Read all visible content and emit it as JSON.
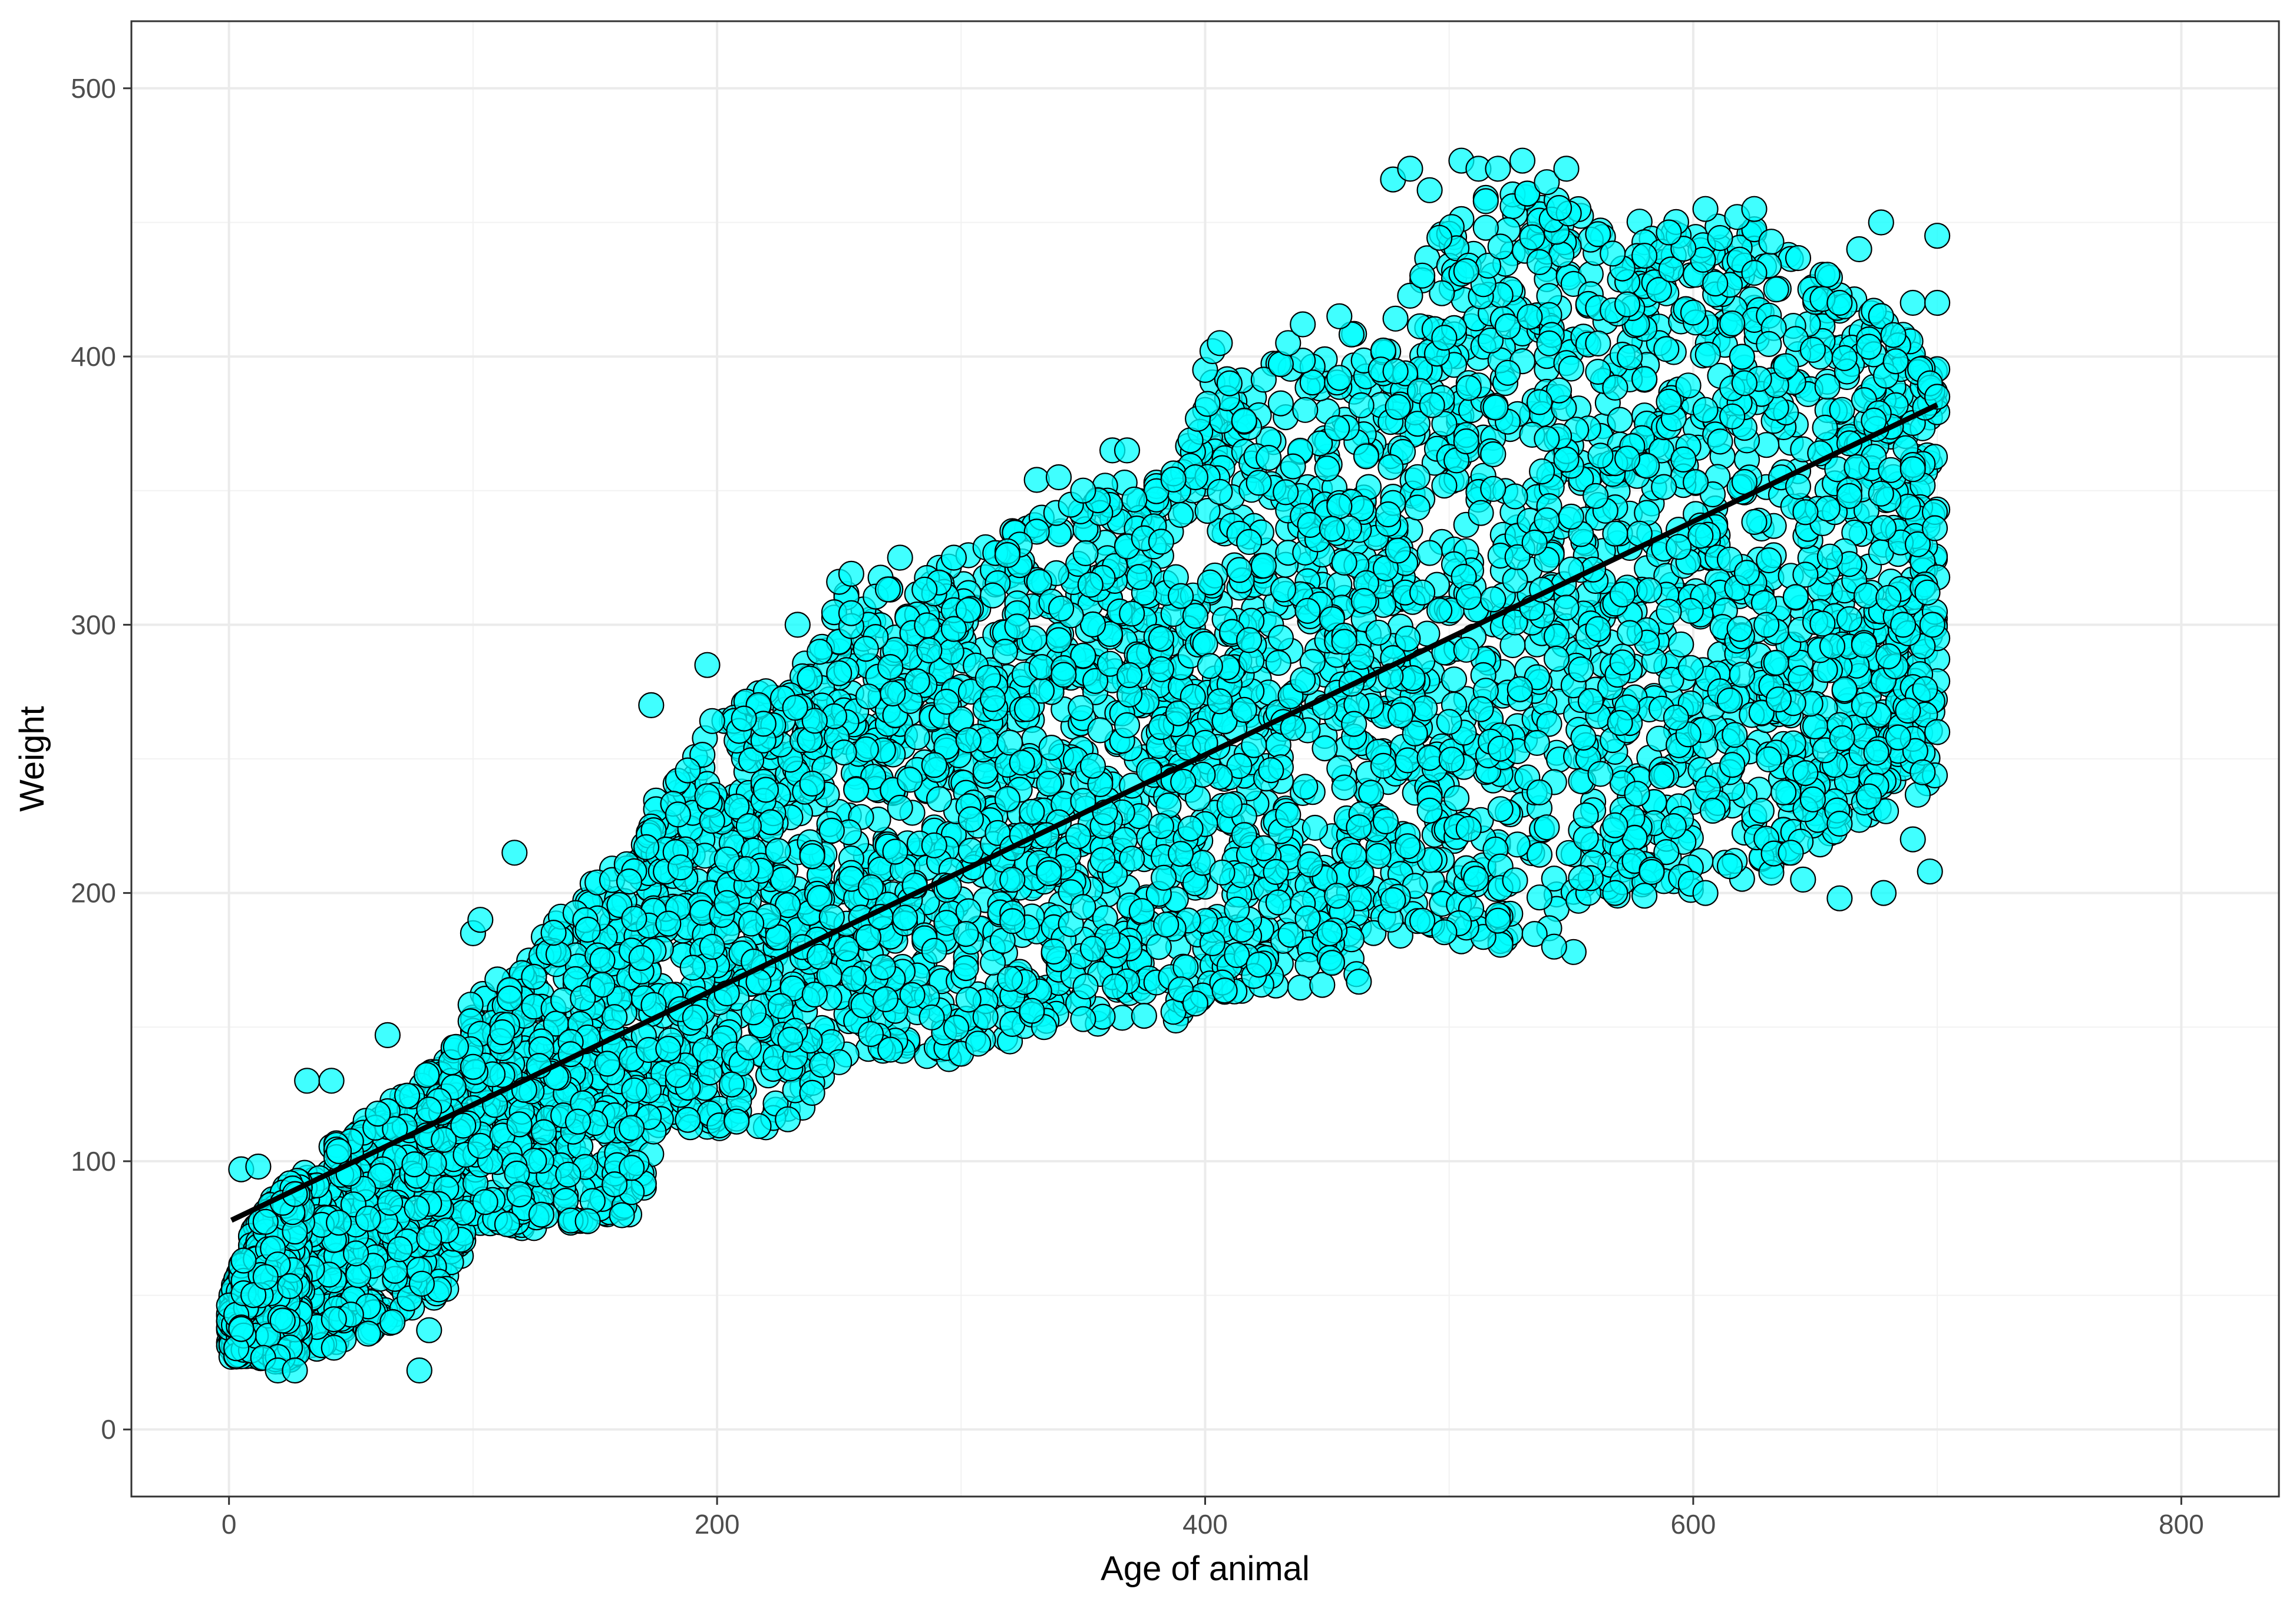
{
  "chart_data": {
    "type": "scatter",
    "title": "",
    "xlabel": "Age of animal",
    "ylabel": "Weight",
    "xlim": [
      -40,
      840
    ],
    "ylim": [
      -25,
      525
    ],
    "x_ticks": [
      0,
      200,
      400,
      600,
      800
    ],
    "y_ticks": [
      0,
      100,
      200,
      300,
      400,
      500
    ],
    "x_tick_labels": [
      "0",
      "200",
      "400",
      "600",
      "800"
    ],
    "y_tick_labels": [
      "0",
      "100",
      "200",
      "300",
      "400",
      "500"
    ],
    "grid": true,
    "legend": "none",
    "point_color": "#00ffff",
    "point_edge_color": "#000000",
    "trend_line": {
      "type": "linear fit",
      "color": "#000000",
      "points": [
        [
          1,
          78
        ],
        [
          700,
          382
        ]
      ]
    },
    "series": [
      {
        "envelope": [
          [
            0,
            27,
            48
          ],
          [
            10,
            27,
            75
          ],
          [
            20,
            25,
            88
          ],
          [
            30,
            27,
            96
          ],
          [
            50,
            32,
            112
          ],
          [
            70,
            40,
            126
          ],
          [
            90,
            50,
            140
          ],
          [
            100,
            75,
            160
          ],
          [
            125,
            75,
            180
          ],
          [
            150,
            78,
            205
          ],
          [
            170,
            80,
            222
          ],
          [
            175,
            112,
            235
          ],
          [
            200,
            112,
            268
          ],
          [
            230,
            112,
            280
          ],
          [
            245,
            130,
            305
          ],
          [
            260,
            138,
            318
          ],
          [
            300,
            138,
            325
          ],
          [
            330,
            148,
            340
          ],
          [
            360,
            148,
            355
          ],
          [
            390,
            152,
            360
          ],
          [
            400,
            162,
            390
          ],
          [
            430,
            162,
            398
          ],
          [
            460,
            162,
            410
          ],
          [
            480,
            180,
            420
          ],
          [
            500,
            180,
            455
          ],
          [
            530,
            180,
            465
          ],
          [
            560,
            198,
            452
          ],
          [
            600,
            200,
            452
          ],
          [
            630,
            205,
            450
          ],
          [
            650,
            215,
            435
          ],
          [
            670,
            225,
            420
          ],
          [
            700,
            240,
            400
          ]
        ],
        "outliers": [
          [
            5,
            97
          ],
          [
            12,
            98
          ],
          [
            20,
            22
          ],
          [
            27,
            22
          ],
          [
            32,
            130
          ],
          [
            42,
            130
          ],
          [
            65,
            147
          ],
          [
            78,
            22
          ],
          [
            82,
            37
          ],
          [
            100,
            185
          ],
          [
            103,
            190
          ],
          [
            117,
            215
          ],
          [
            173,
            270
          ],
          [
            196,
            285
          ],
          [
            233,
            300
          ],
          [
            250,
            316
          ],
          [
            255,
            319
          ],
          [
            275,
            325
          ],
          [
            297,
            325
          ],
          [
            319,
            326
          ],
          [
            331,
            354
          ],
          [
            340,
            355
          ],
          [
            350,
            350
          ],
          [
            362,
            365
          ],
          [
            368,
            365
          ],
          [
            400,
            395
          ],
          [
            403,
            402
          ],
          [
            406,
            405
          ],
          [
            410,
            390
          ],
          [
            434,
            405
          ],
          [
            440,
            412
          ],
          [
            455,
            415
          ],
          [
            477,
            466
          ],
          [
            484,
            470
          ],
          [
            492,
            462
          ],
          [
            505,
            473
          ],
          [
            512,
            470
          ],
          [
            520,
            470
          ],
          [
            530,
            473
          ],
          [
            540,
            465
          ],
          [
            548,
            470
          ],
          [
            551,
            178
          ],
          [
            543,
            180
          ],
          [
            605,
            455
          ],
          [
            618,
            452
          ],
          [
            625,
            455
          ],
          [
            660,
            420
          ],
          [
            668,
            440
          ],
          [
            677,
            450
          ],
          [
            682,
            408
          ],
          [
            690,
            420
          ],
          [
            697,
            390
          ],
          [
            700,
            445
          ],
          [
            700,
            420
          ],
          [
            700,
            385
          ],
          [
            700,
            260
          ],
          [
            697,
            208
          ],
          [
            690,
            220
          ],
          [
            678,
            200
          ],
          [
            675,
            240
          ],
          [
            660,
            198
          ],
          [
            645,
            205
          ],
          [
            640,
            215
          ],
          [
            615,
            210
          ],
          [
            605,
            200
          ],
          [
            580,
            199
          ],
          [
            568,
            200
          ],
          [
            688,
            268
          ],
          [
            694,
            245
          ],
          [
            698,
            300
          ],
          [
            692,
            330
          ],
          [
            686,
            300
          ],
          [
            684,
            258
          ],
          [
            670,
            270
          ],
          [
            672,
            236
          ],
          [
            664,
            348
          ],
          [
            657,
            292
          ],
          [
            680,
            310
          ],
          [
            695,
            276
          ],
          [
            690,
            358
          ],
          [
            699,
            336
          ],
          [
            696,
            312
          ]
        ]
      }
    ]
  }
}
